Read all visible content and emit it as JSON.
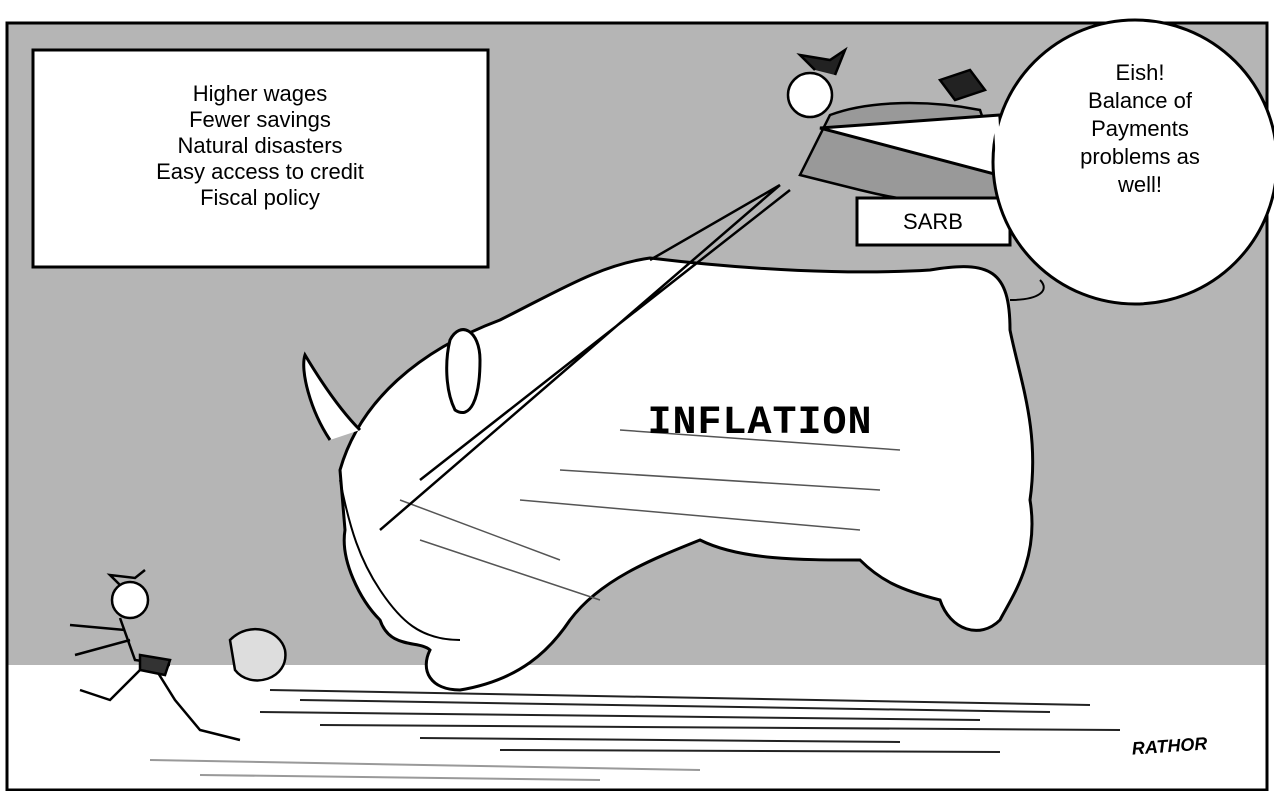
{
  "causes_box": {
    "lines": [
      "Higher wages",
      "Fewer savings",
      "Natural disasters",
      "Easy access to credit",
      "Fiscal policy"
    ]
  },
  "speech_bubble": {
    "lines": [
      "Eish!",
      "Balance of",
      "Payments",
      "problems as",
      "well!"
    ]
  },
  "rider_label": "SARB",
  "rhino_label": "INFLATION",
  "signature": "RATHOR"
}
